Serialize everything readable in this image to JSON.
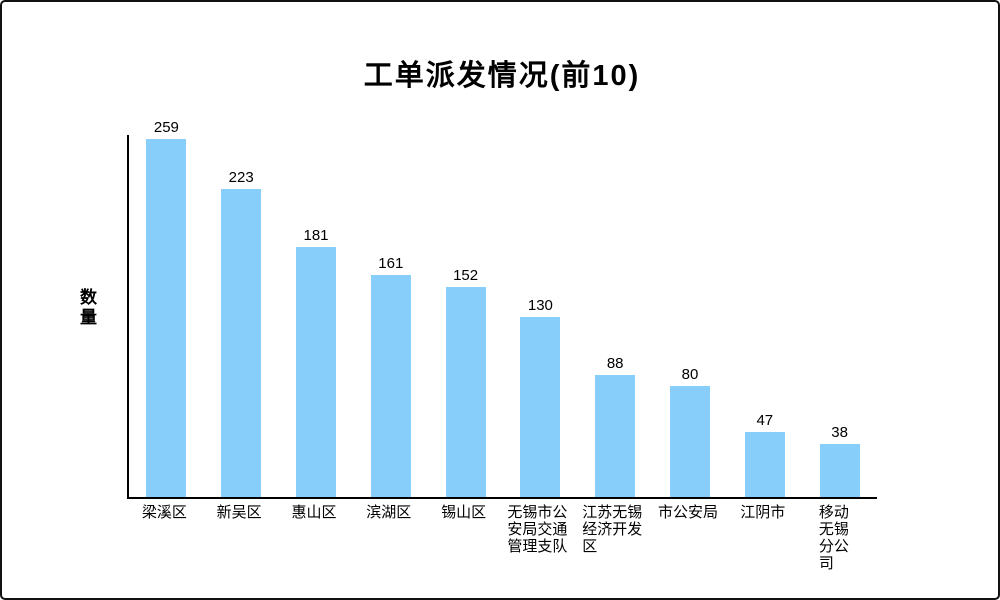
{
  "chart_data": {
    "type": "bar",
    "title": "工单派发情况(前10)",
    "xlabel": "",
    "ylabel": "数量",
    "categories": [
      "梁溪区",
      "新吴区",
      "惠山区",
      "滨湖区",
      "锡山区",
      "无锡市公安局交通管理支队",
      "江苏无锡经济开发区",
      "市公安局",
      "江阴市",
      "移动无锡分公司"
    ],
    "values": [
      259,
      223,
      181,
      161,
      152,
      130,
      88,
      80,
      47,
      38
    ],
    "ylim": [
      0,
      262
    ],
    "grid": false,
    "legend": false,
    "bar_color": "#87CEFA",
    "axis_color": "#000000",
    "text_color": "#000000",
    "background_color": "#ffffff"
  }
}
